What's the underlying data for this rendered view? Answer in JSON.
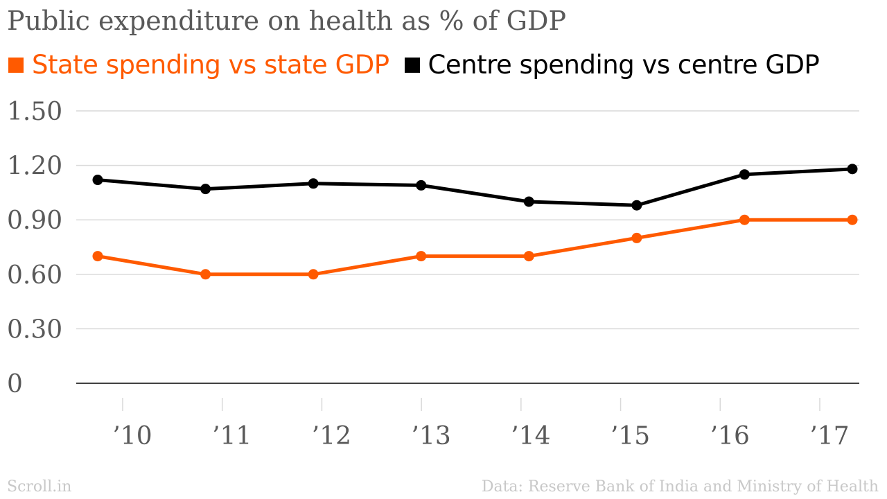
{
  "title": "Public expenditure on health as % of GDP",
  "colors": {
    "state": "#ff5a00",
    "centre": "#000000",
    "grid": "#d9d9d9",
    "axis": "#000000",
    "tick_text": "#595959",
    "footer": "#c8c8c8"
  },
  "footer": {
    "source_left": "Scroll.in",
    "source_right": "Data: Reserve Bank of India and Ministry of Health"
  },
  "chart_data": {
    "type": "line",
    "title": "Public expenditure on health as % of GDP",
    "xlabel": "",
    "ylabel": "",
    "x_tick_labels": [
      "’10",
      "’11",
      "’12",
      "’13",
      "’14",
      "’15",
      "’16",
      "’17"
    ],
    "y_tick_labels": [
      "0",
      "0.30",
      "0.60",
      "0.90",
      "1.20",
      "1.50"
    ],
    "y_ticks": [
      0,
      0.3,
      0.6,
      0.9,
      1.2,
      1.5
    ],
    "ylim": [
      0,
      1.5
    ],
    "grid": true,
    "legend_position": "top-left",
    "series": [
      {
        "name": "State spending vs state GDP",
        "color": "#ff5a00",
        "values": [
          0.7,
          0.6,
          0.6,
          0.7,
          0.7,
          0.8,
          0.9,
          0.9
        ]
      },
      {
        "name": "Centre spending vs centre GDP",
        "color": "#000000",
        "values": [
          1.12,
          1.07,
          1.1,
          1.09,
          1.0,
          0.98,
          1.15,
          1.18
        ]
      }
    ]
  }
}
